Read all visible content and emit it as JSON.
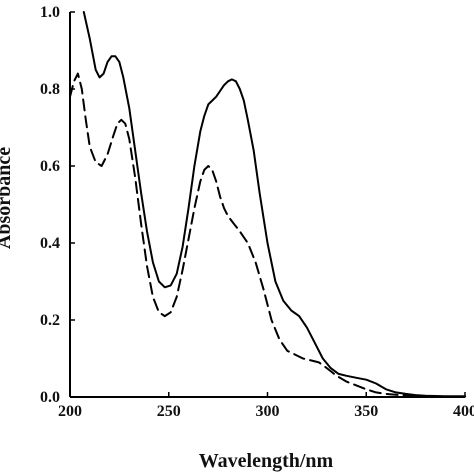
{
  "chart_data": {
    "type": "line",
    "title": "",
    "xlabel": "Wavelength/nm",
    "ylabel": "Absorbance",
    "xlim": [
      200,
      400
    ],
    "ylim": [
      0.0,
      1.0
    ],
    "x_ticks": [
      200,
      250,
      300,
      350,
      400
    ],
    "x_tick_labels": [
      "200",
      "250",
      "300",
      "350",
      "400"
    ],
    "y_ticks": [
      0.0,
      0.2,
      0.4,
      0.6,
      0.8,
      1.0
    ],
    "y_tick_labels": [
      "0.0",
      "0.2",
      "0.4",
      "0.6",
      "0.8",
      "1.0"
    ],
    "grid": false,
    "legend": "none",
    "series": [
      {
        "line_style": "solid",
        "color": "#000000",
        "x": [
          207,
          210,
          213,
          215,
          217,
          219,
          221,
          223,
          225,
          227,
          230,
          233,
          236,
          239,
          242,
          245,
          248,
          251,
          254,
          257,
          260,
          263,
          266,
          268,
          270,
          272,
          274,
          276,
          278,
          280,
          282,
          284,
          286,
          288,
          290,
          293,
          296,
          300,
          304,
          308,
          312,
          316,
          320,
          324,
          328,
          332,
          336,
          340,
          345,
          350,
          355,
          360,
          365,
          370,
          375,
          380,
          390,
          400
        ],
        "y": [
          1.0,
          0.93,
          0.85,
          0.83,
          0.84,
          0.87,
          0.885,
          0.885,
          0.87,
          0.83,
          0.75,
          0.64,
          0.53,
          0.43,
          0.35,
          0.3,
          0.285,
          0.29,
          0.32,
          0.39,
          0.49,
          0.6,
          0.69,
          0.73,
          0.76,
          0.77,
          0.78,
          0.795,
          0.81,
          0.82,
          0.825,
          0.82,
          0.8,
          0.77,
          0.72,
          0.64,
          0.53,
          0.4,
          0.3,
          0.25,
          0.225,
          0.21,
          0.18,
          0.14,
          0.1,
          0.075,
          0.06,
          0.055,
          0.05,
          0.045,
          0.035,
          0.02,
          0.012,
          0.008,
          0.005,
          0.003,
          0.002,
          0.002
        ]
      },
      {
        "line_style": "dashed",
        "color": "#000000",
        "x": [
          200,
          202,
          204,
          206,
          208,
          210,
          213,
          216,
          219,
          222,
          224,
          226,
          228,
          230,
          233,
          236,
          239,
          242,
          245,
          248,
          251,
          254,
          257,
          260,
          263,
          266,
          268,
          270,
          272,
          274,
          276,
          278,
          280,
          283,
          286,
          290,
          294,
          298,
          302,
          306,
          310,
          314,
          318,
          322,
          326,
          330,
          335,
          340,
          345,
          350,
          355,
          360,
          370,
          380,
          390,
          400
        ],
        "y": [
          0.78,
          0.82,
          0.84,
          0.8,
          0.72,
          0.65,
          0.61,
          0.6,
          0.63,
          0.68,
          0.71,
          0.72,
          0.71,
          0.67,
          0.57,
          0.45,
          0.34,
          0.26,
          0.22,
          0.21,
          0.22,
          0.26,
          0.33,
          0.41,
          0.49,
          0.56,
          0.59,
          0.6,
          0.59,
          0.56,
          0.52,
          0.49,
          0.47,
          0.45,
          0.43,
          0.4,
          0.35,
          0.28,
          0.2,
          0.15,
          0.12,
          0.11,
          0.1,
          0.095,
          0.09,
          0.075,
          0.055,
          0.04,
          0.03,
          0.02,
          0.012,
          0.008,
          0.004,
          0.002,
          0.001,
          0.001
        ]
      }
    ]
  }
}
